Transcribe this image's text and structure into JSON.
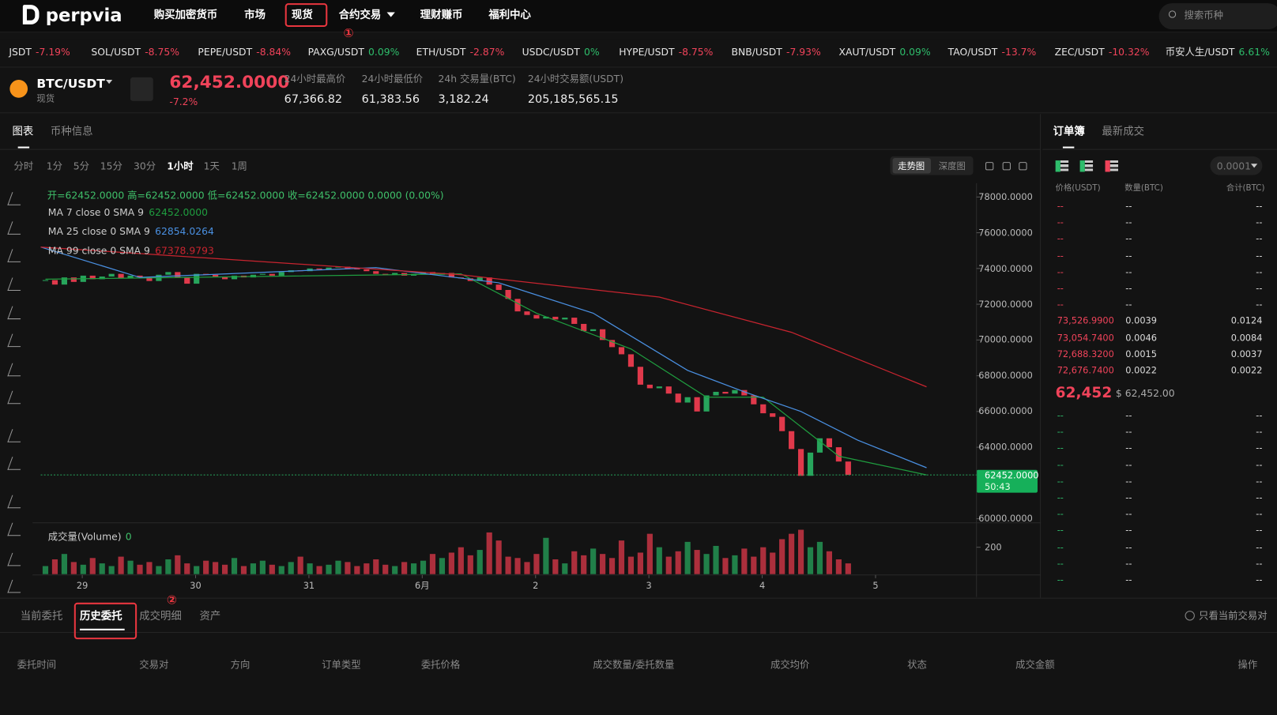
{
  "nav": {
    "logo": "perpvia",
    "items": [
      "购买加密货币",
      "市场",
      "现货",
      "合约交易",
      "理财赚币",
      "福利中心"
    ],
    "search": "搜索币种"
  },
  "annotations": [
    "①",
    "②"
  ],
  "ticker": [
    {
      "pair": "JSDT",
      "change": "-7.19%"
    },
    {
      "pair": "SOL/USDT",
      "change": "-8.75%"
    },
    {
      "pair": "PEPE/USDT",
      "change": "-8.84%"
    },
    {
      "pair": "PAXG/USDT",
      "change": "0.09%"
    },
    {
      "pair": "ETH/USDT",
      "change": "-2.87%"
    },
    {
      "pair": "USDC/USDT",
      "change": "0%"
    },
    {
      "pair": "HYPE/USDT",
      "change": "-8.75%"
    },
    {
      "pair": "BNB/USDT",
      "change": "-7.93%"
    },
    {
      "pair": "XAUT/USDT",
      "change": "0.09%"
    },
    {
      "pair": "TAO/USDT",
      "change": "-13.7%"
    },
    {
      "pair": "ZEC/USDT",
      "change": "-10.32%"
    },
    {
      "pair": "币安人生/USDT",
      "change": "6.61%"
    }
  ],
  "pair_header": {
    "pair": "BTC/USDT",
    "market": "现货",
    "price": "62,452.0000",
    "change": "-7.2%",
    "stats": [
      {
        "label": "24小时最高价",
        "value": "67,366.82"
      },
      {
        "label": "24小时最低价",
        "value": "61,383.56"
      },
      {
        "label": "24h 交易量(BTC)",
        "value": "3,182.24"
      },
      {
        "label": "24小时交易额(USDT)",
        "value": "205,185,565.15"
      }
    ]
  },
  "chart_panel": {
    "tabs": [
      "图表",
      "币种信息"
    ],
    "intervals": [
      "分时",
      "1分",
      "5分",
      "15分",
      "30分",
      "1小时",
      "1天",
      "1周"
    ],
    "active_interval": "1小时",
    "view_tabs": [
      "走势图",
      "深度图"
    ],
    "ohlc": "开=62452.0000 高=62452.0000 低=62452.0000 收=62452.0000 0.0000 (0.00%)",
    "volume_label": "成交量(Volume)",
    "volume_value": "0"
  },
  "chart_data": {
    "type": "candlestick",
    "up_color": "#27a55c",
    "down_color": "#e0394b",
    "close": [
      73350,
      73100,
      73500,
      73250,
      73600,
      73400,
      73550,
      73700,
      73450,
      73600,
      73500,
      73300,
      73650,
      73800,
      73500,
      73150,
      73700,
      73650,
      73550,
      73400,
      73600,
      73500,
      73650,
      73700,
      73600,
      73800,
      73900,
      73850,
      74000,
      73950,
      74050,
      74100,
      74000,
      73950,
      73850,
      73700,
      73650,
      73750,
      73600,
      73700,
      73800,
      73650,
      73750,
      73500,
      73450,
      73300,
      73500,
      73100,
      72800,
      72300,
      71600,
      71400,
      71200,
      71300,
      71150,
      71250,
      70900,
      70500,
      70600,
      70000,
      69600,
      69200,
      68500,
      67500,
      67300,
      67400,
      67000,
      66500,
      66800,
      66000,
      66900,
      67100,
      67000,
      67200,
      66900,
      66400,
      65900,
      65700,
      64900,
      63900,
      62400,
      63700,
      64500,
      64000,
      63200,
      62452
    ],
    "volume": [
      60,
      110,
      150,
      90,
      70,
      120,
      80,
      60,
      130,
      100,
      70,
      90,
      60,
      110,
      140,
      80,
      60,
      100,
      90,
      70,
      120,
      60,
      80,
      100,
      70,
      60,
      90,
      130,
      80,
      60,
      70,
      100,
      90,
      60,
      80,
      110,
      70,
      60,
      90,
      80,
      100,
      150,
      120,
      160,
      200,
      140,
      180,
      310,
      250,
      130,
      120,
      90,
      150,
      270,
      110,
      80,
      170,
      140,
      190,
      150,
      120,
      250,
      130,
      160,
      300,
      200,
      130,
      170,
      240,
      180,
      150,
      210,
      120,
      140,
      190,
      130,
      200,
      160,
      260,
      300,
      330,
      200,
      240,
      170,
      110,
      80
    ],
    "xlim": [
      -0.5,
      98.5
    ],
    "xticks": [
      {
        "value": 3.9,
        "label": "29"
      },
      {
        "value": 15.9,
        "label": "30"
      },
      {
        "value": 27.9,
        "label": "31"
      },
      {
        "value": 39.9,
        "label": "6月"
      },
      {
        "value": 51.9,
        "label": "2"
      },
      {
        "value": 63.9,
        "label": "3"
      },
      {
        "value": 75.9,
        "label": "4"
      },
      {
        "value": 87.9,
        "label": "5"
      }
    ],
    "ylim": [
      59770,
      78770
    ],
    "yticks": [
      {
        "value": 78000,
        "label": "78000.0000"
      },
      {
        "value": 76000,
        "label": "76000.0000"
      },
      {
        "value": 74000,
        "label": "74000.0000"
      },
      {
        "value": 72000,
        "label": "72000.0000"
      },
      {
        "value": 70000,
        "label": "70000.0000"
      },
      {
        "value": 68000,
        "label": "68000.0000"
      },
      {
        "value": 66000,
        "label": "66000.0000"
      },
      {
        "value": 64000,
        "label": "64000.0000"
      },
      {
        "value": 60000,
        "label": "60000.0000"
      }
    ],
    "volume_ylim": [
      0,
      333
    ],
    "volume_yticks": [
      200
    ],
    "last_price": {
      "value": 62452,
      "label": "62452.0000"
    },
    "countdown": "50:43",
    "series": [
      {
        "name": "MA 7 close 0 SMA 9",
        "color": "#1f9d3f",
        "value_label": "62452.0000",
        "x": [
          0,
          44,
          52,
          62,
          70,
          76,
          84,
          93.3
        ],
        "values": [
          73400,
          73700,
          71500,
          69500,
          66800,
          66800,
          63500,
          62452
        ]
      },
      {
        "name": "MA 25 close 0 SMA 9",
        "color": "#4a90e2",
        "value_label": "62854.0264",
        "x": [
          -0.5,
          10,
          35,
          48,
          58,
          68,
          74,
          80,
          86,
          93.3
        ],
        "values": [
          75200,
          73500,
          74050,
          73200,
          71500,
          68300,
          67100,
          66000,
          64400,
          62854
        ]
      },
      {
        "name": "MA 99 close 0 SMA 9",
        "color": "#c8242f",
        "value_label": "67378.9793",
        "x": [
          -0.5,
          44,
          65,
          79,
          93.3
        ],
        "values": [
          75200,
          73650,
          72400,
          70430,
          67379
        ]
      }
    ]
  },
  "orderbook": {
    "tabs": [
      "订单簿",
      "最新成交"
    ],
    "step": "0.0001",
    "columns": [
      "价格(USDT)",
      "数量(BTC)",
      "合计(BTC)"
    ],
    "asks": [
      [
        "--",
        "--",
        "--"
      ],
      [
        "--",
        "--",
        "--"
      ],
      [
        "--",
        "--",
        "--"
      ],
      [
        "--",
        "--",
        "--"
      ],
      [
        "--",
        "--",
        "--"
      ],
      [
        "--",
        "--",
        "--"
      ],
      [
        "--",
        "--",
        "--"
      ],
      [
        "73,526.9900",
        "0.0039",
        "0.0124"
      ],
      [
        "73,054.7400",
        "0.0046",
        "0.0084"
      ],
      [
        "72,688.3200",
        "0.0015",
        "0.0037"
      ],
      [
        "72,676.7400",
        "0.0022",
        "0.0022"
      ]
    ],
    "mid_price": "62,452",
    "mid_usd": "$ 62,452.00",
    "bids": [
      [
        "--",
        "--",
        "--"
      ],
      [
        "--",
        "--",
        "--"
      ],
      [
        "--",
        "--",
        "--"
      ],
      [
        "--",
        "--",
        "--"
      ],
      [
        "--",
        "--",
        "--"
      ],
      [
        "--",
        "--",
        "--"
      ],
      [
        "--",
        "--",
        "--"
      ],
      [
        "--",
        "--",
        "--"
      ],
      [
        "--",
        "--",
        "--"
      ],
      [
        "--",
        "--",
        "--"
      ],
      [
        "--",
        "--",
        "--"
      ]
    ]
  },
  "bottom": {
    "tabs": [
      "当前委托",
      "历史委托",
      "成交明细",
      "资产"
    ],
    "checkbox": "只看当前交易对",
    "columns": [
      "委托时间",
      "交易对",
      "方向",
      "订单类型",
      "委托价格",
      "成交数量/委托数量",
      "成交均价",
      "状态",
      "成交金额",
      "操作"
    ]
  }
}
